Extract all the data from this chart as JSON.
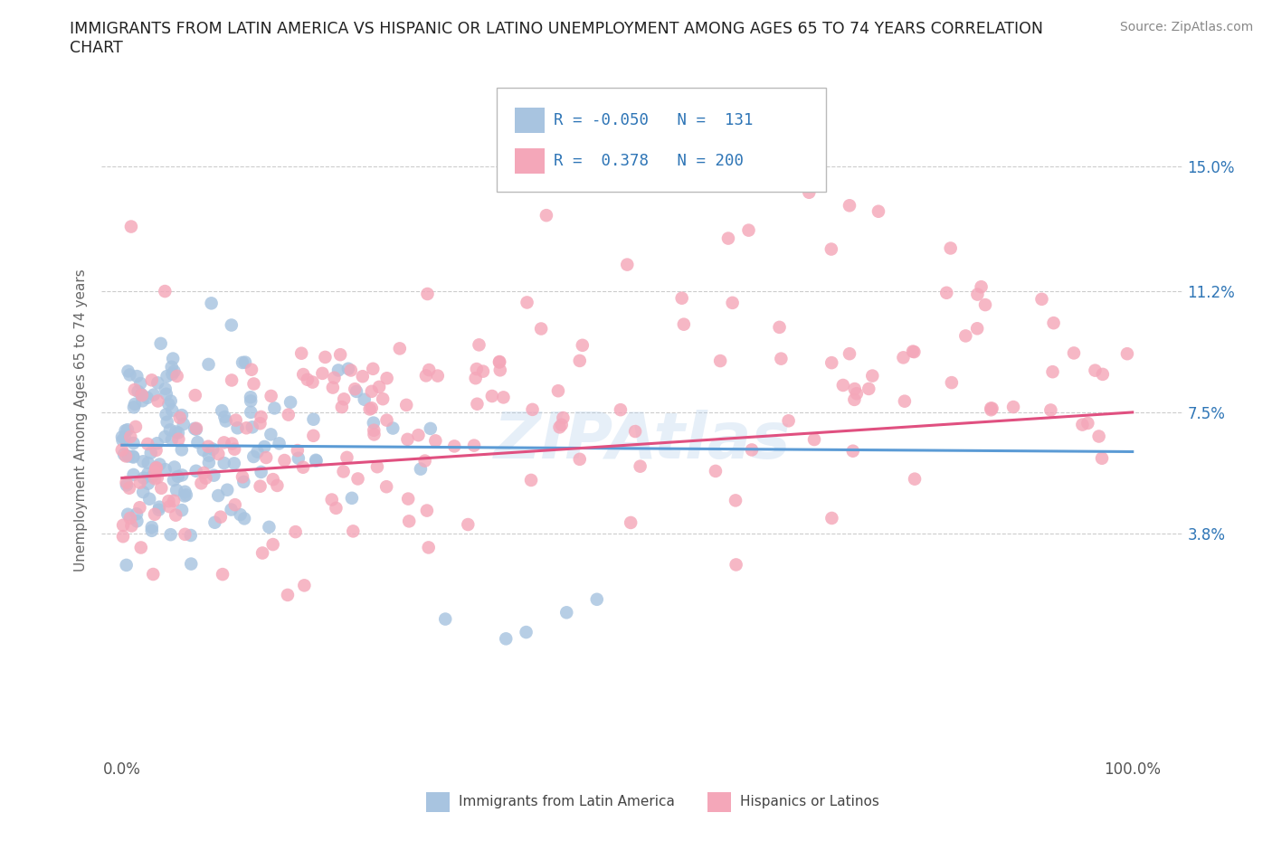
{
  "title_line1": "IMMIGRANTS FROM LATIN AMERICA VS HISPANIC OR LATINO UNEMPLOYMENT AMONG AGES 65 TO 74 YEARS CORRELATION",
  "title_line2": "CHART",
  "source": "Source: ZipAtlas.com",
  "ylabel": "Unemployment Among Ages 65 to 74 years",
  "ytick_vals": [
    0.038,
    0.075,
    0.112,
    0.15
  ],
  "ytick_labels": [
    "3.8%",
    "7.5%",
    "11.2%",
    "15.0%"
  ],
  "xmin": -0.02,
  "xmax": 1.05,
  "ymin": -0.03,
  "ymax": 0.175,
  "R_blue": -0.05,
  "N_blue": 131,
  "R_pink": 0.378,
  "N_pink": 200,
  "color_blue": "#a8c4e0",
  "color_pink": "#f4a7b9",
  "line_blue": "#5b9bd5",
  "line_pink": "#e05080",
  "watermark": "ZIPAtlas",
  "legend_label_blue": "Immigrants from Latin America",
  "legend_label_pink": "Hispanics or Latinos",
  "hline_color": "#cccccc",
  "title_color": "#222222",
  "source_color": "#888888",
  "ylabel_color": "#666666",
  "tick_color": "#555555",
  "right_tick_color": "#2e75b6"
}
